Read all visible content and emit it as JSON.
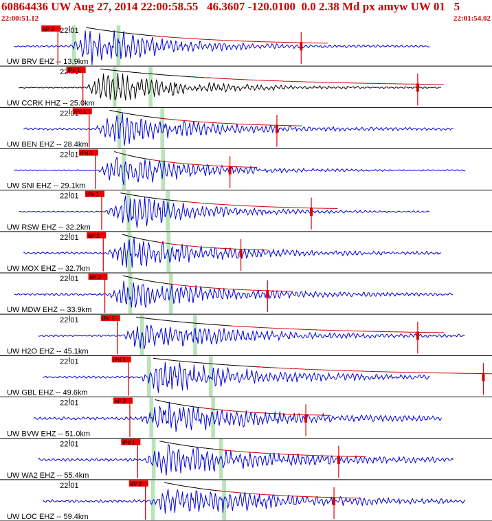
{
  "header": {
    "title": "60864436 UW Aug 27, 2014 22:00:58.55   46.3607 -120.0100  0.0 2.38 Md px amyw UW 01   5",
    "start_time": "22:00:51.12",
    "end_time": "22:01:54.02"
  },
  "colors": {
    "title": "#cc0000",
    "trace": "#0000dd",
    "trace_alt": "#000000",
    "pick_box": "#ee0000",
    "pick_line": "#dd0000",
    "coda_curve": "#cc0000",
    "envelope": "#000000",
    "window_highlight": "#b9e3b9",
    "grid": "#000000"
  },
  "chart_data": {
    "type": "seismogram",
    "x_unit": "time (UTC)",
    "x_range": [
      "22:00:51.12",
      "22:01:54.02"
    ],
    "minute_tick_label": "22:01",
    "minute_tick_time": "22:01:00.00",
    "traces": [
      {
        "label": "UW BRV EHZ -- 13.9km",
        "phase": "eP 2",
        "color": "trace",
        "p_time": 7.4,
        "coda_time": 38.5,
        "onset_time": 9.0,
        "noise_amp": 0.05,
        "peak_amp": 1.0,
        "decay": 9,
        "windows": [
          [
            9.2,
            9.7
          ],
          [
            14.9,
            15.4
          ]
        ]
      },
      {
        "label": "UW CCRK HHZ -- 25.0km",
        "phase": "iPc 1",
        "color": "trace_alt",
        "p_time": 10.6,
        "coda_time": 53.4,
        "onset_time": 10.8,
        "noise_amp": 0.03,
        "peak_amp": 0.85,
        "decay": 10,
        "windows": [
          [
            14.4,
            14.9
          ],
          [
            19.0,
            19.5
          ]
        ]
      },
      {
        "label": "UW BEN EHZ -- 28.4km",
        "phase": "iPc 1",
        "color": "trace",
        "p_time": 11.4,
        "coda_time": 35.4,
        "onset_time": 12.0,
        "noise_amp": 0.06,
        "peak_amp": 0.85,
        "decay": 10,
        "windows": [
          [
            15.0,
            15.5
          ],
          [
            20.5,
            21.0
          ]
        ]
      },
      {
        "label": "UW SNI EHZ -- 29.1km",
        "phase": "iPd 1",
        "color": "trace",
        "p_time": 12.2,
        "coda_time": 29.4,
        "onset_time": 12.6,
        "noise_amp": 0.03,
        "peak_amp": 0.9,
        "decay": 9,
        "windows": [
          [
            15.6,
            16.1
          ],
          [
            20.6,
            21.1
          ]
        ]
      },
      {
        "label": "UW RSW EHZ -- 32.2km",
        "phase": "iPc 1",
        "color": "trace",
        "p_time": 13.0,
        "coda_time": 39.8,
        "onset_time": 13.4,
        "noise_amp": 0.03,
        "peak_amp": 0.9,
        "decay": 9,
        "windows": [
          [
            16.2,
            16.7
          ],
          [
            21.2,
            21.7
          ]
        ]
      },
      {
        "label": "UW MOX EHZ -- 32.7km",
        "phase": "eP 2",
        "color": "trace",
        "p_time": 13.2,
        "coda_time": 30.8,
        "onset_time": 13.6,
        "noise_amp": 0.06,
        "peak_amp": 0.8,
        "decay": 11,
        "windows": [
          [
            16.3,
            16.8
          ],
          [
            21.3,
            21.8
          ]
        ]
      },
      {
        "label": "UW MDW EHZ -- 33.9km",
        "phase": "eP 2",
        "color": "trace",
        "p_time": 13.4,
        "coda_time": 34.2,
        "onset_time": 13.7,
        "noise_amp": 0.06,
        "peak_amp": 0.8,
        "decay": 11,
        "windows": [
          [
            16.4,
            16.9
          ],
          [
            21.6,
            22.1
          ]
        ]
      },
      {
        "label": "UW H2O EHZ -- 45.1km",
        "phase": "iPc 1",
        "color": "trace",
        "p_time": 15.0,
        "coda_time": 53.4,
        "onset_time": 15.4,
        "noise_amp": 0.05,
        "peak_amp": 0.8,
        "decay": 12,
        "windows": [
          [
            17.9,
            18.4
          ],
          [
            24.7,
            25.2
          ]
        ]
      },
      {
        "label": "UW GBL EHZ -- 49.6km",
        "phase": "iPd 1",
        "color": "trace",
        "p_time": 16.4,
        "coda_time": 61.8,
        "onset_time": 17.6,
        "noise_amp": 0.06,
        "peak_amp": 0.8,
        "decay": 13,
        "windows": [
          [
            18.8,
            19.3
          ],
          [
            26.7,
            27.2
          ]
        ]
      },
      {
        "label": "UW BVW EHZ -- 51.0km",
        "phase": "eP 2",
        "color": "trace",
        "p_time": 16.6,
        "coda_time": 39.1,
        "onset_time": 17.8,
        "noise_amp": 0.08,
        "peak_amp": 0.8,
        "decay": 13,
        "windows": [
          [
            19.1,
            19.6
          ],
          [
            27.0,
            27.5
          ]
        ]
      },
      {
        "label": "UW WA2 EHZ -- 55.4km",
        "phase": "iPd 1",
        "color": "trace",
        "p_time": 17.6,
        "coda_time": 43.3,
        "onset_time": 18.4,
        "noise_amp": 0.08,
        "peak_amp": 0.8,
        "decay": 13,
        "windows": [
          [
            19.4,
            19.9
          ],
          [
            28.0,
            28.5
          ]
        ]
      },
      {
        "label": "UW LOC EHZ -- 59.4km",
        "phase": "eP 2",
        "color": "trace",
        "p_time": 18.6,
        "coda_time": 42.7,
        "onset_time": 19.0,
        "noise_amp": 0.08,
        "peak_amp": 0.8,
        "decay": 13,
        "windows": [
          [
            19.3,
            19.8
          ],
          [
            28.4,
            28.9
          ]
        ]
      }
    ]
  }
}
